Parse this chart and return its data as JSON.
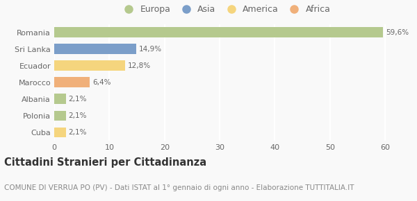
{
  "categories": [
    "Romania",
    "Sri Lanka",
    "Ecuador",
    "Marocco",
    "Albania",
    "Polonia",
    "Cuba"
  ],
  "values": [
    59.6,
    14.9,
    12.8,
    6.4,
    2.1,
    2.1,
    2.1
  ],
  "labels": [
    "59,6%",
    "14,9%",
    "12,8%",
    "6,4%",
    "2,1%",
    "2,1%",
    "2,1%"
  ],
  "colors": [
    "#b5c98e",
    "#7b9ec9",
    "#f5d57e",
    "#f0b07a",
    "#b5c98e",
    "#b5c98e",
    "#f5d57e"
  ],
  "legend_labels": [
    "Europa",
    "Asia",
    "America",
    "Africa"
  ],
  "legend_colors": [
    "#b5c98e",
    "#7b9ec9",
    "#f5d57e",
    "#f0b07a"
  ],
  "title": "Cittadini Stranieri per Cittadinanza",
  "subtitle": "COMUNE DI VERRUA PO (PV) - Dati ISTAT al 1° gennaio di ogni anno - Elaborazione TUTTITALIA.IT",
  "xlim": [
    0,
    62
  ],
  "background_color": "#f9f9f9",
  "grid_color": "#ffffff",
  "title_fontsize": 10.5,
  "subtitle_fontsize": 7.5,
  "label_fontsize": 7.5,
  "tick_fontsize": 8,
  "legend_fontsize": 9
}
